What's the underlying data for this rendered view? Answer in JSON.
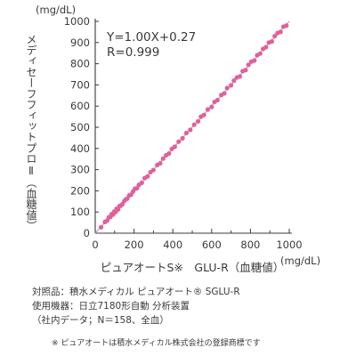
{
  "chart_data": {
    "type": "scatter",
    "title": "",
    "xlabel": "ピュアオートS※　GLU-R（血糖値）",
    "ylabel": "メディセーフフィットプロⅡ（血糖値）",
    "x_unit": "(mg/dL)",
    "y_unit": "(mg/dL)",
    "xlim": [
      0,
      1000
    ],
    "ylim": [
      0,
      1000
    ],
    "x_ticks": [
      "0",
      "200",
      "400",
      "600",
      "800",
      "1000"
    ],
    "y_ticks": [
      "0",
      "100",
      "200",
      "300",
      "400",
      "500",
      "600",
      "700",
      "800",
      "900",
      "1000"
    ],
    "grid": false,
    "equation": "Y=1.00X+0.27",
    "r_value": "R=0.999",
    "regression": {
      "slope": 1.0,
      "intercept": 0.27
    },
    "point_color": "#e0609c",
    "line_color": "#9a9a9a",
    "points": [
      [
        30,
        28
      ],
      [
        50,
        53
      ],
      [
        62,
        60
      ],
      [
        70,
        75
      ],
      [
        78,
        76
      ],
      [
        85,
        90
      ],
      [
        92,
        88
      ],
      [
        98,
        102
      ],
      [
        105,
        100
      ],
      [
        110,
        115
      ],
      [
        118,
        112
      ],
      [
        125,
        128
      ],
      [
        132,
        130
      ],
      [
        140,
        137
      ],
      [
        150,
        152
      ],
      [
        158,
        160
      ],
      [
        165,
        163
      ],
      [
        175,
        178
      ],
      [
        185,
        182
      ],
      [
        195,
        197
      ],
      [
        205,
        210
      ],
      [
        215,
        212
      ],
      [
        225,
        228
      ],
      [
        240,
        238
      ],
      [
        255,
        260
      ],
      [
        270,
        268
      ],
      [
        285,
        288
      ],
      [
        300,
        298
      ],
      [
        320,
        322
      ],
      [
        335,
        330
      ],
      [
        350,
        352
      ],
      [
        365,
        368
      ],
      [
        380,
        376
      ],
      [
        395,
        398
      ],
      [
        410,
        408
      ],
      [
        430,
        432
      ],
      [
        450,
        448
      ],
      [
        470,
        473
      ],
      [
        490,
        488
      ],
      [
        510,
        512
      ],
      [
        530,
        528
      ],
      [
        545,
        550
      ],
      [
        560,
        558
      ],
      [
        580,
        584
      ],
      [
        600,
        596
      ],
      [
        615,
        620
      ],
      [
        630,
        628
      ],
      [
        650,
        652
      ],
      [
        665,
        660
      ],
      [
        680,
        685
      ],
      [
        700,
        698
      ],
      [
        715,
        720
      ],
      [
        730,
        735
      ],
      [
        745,
        740
      ],
      [
        760,
        765
      ],
      [
        775,
        770
      ],
      [
        790,
        795
      ],
      [
        805,
        810
      ],
      [
        820,
        815
      ],
      [
        835,
        840
      ],
      [
        850,
        848
      ],
      [
        865,
        870
      ],
      [
        880,
        878
      ],
      [
        895,
        900
      ],
      [
        910,
        905
      ],
      [
        925,
        930
      ],
      [
        940,
        945
      ],
      [
        955,
        950
      ],
      [
        970,
        975
      ],
      [
        985,
        980
      ]
    ]
  },
  "captions": {
    "line1": "対照品：積水メディカル ピュアオート® SGLU-R",
    "line2": "使用機器：日立7180形自動 分析装置",
    "line3": "（社内データ；N＝158、全血）",
    "note": "※ ピュアオートは積水メディカル株式会社の登録商標です"
  }
}
